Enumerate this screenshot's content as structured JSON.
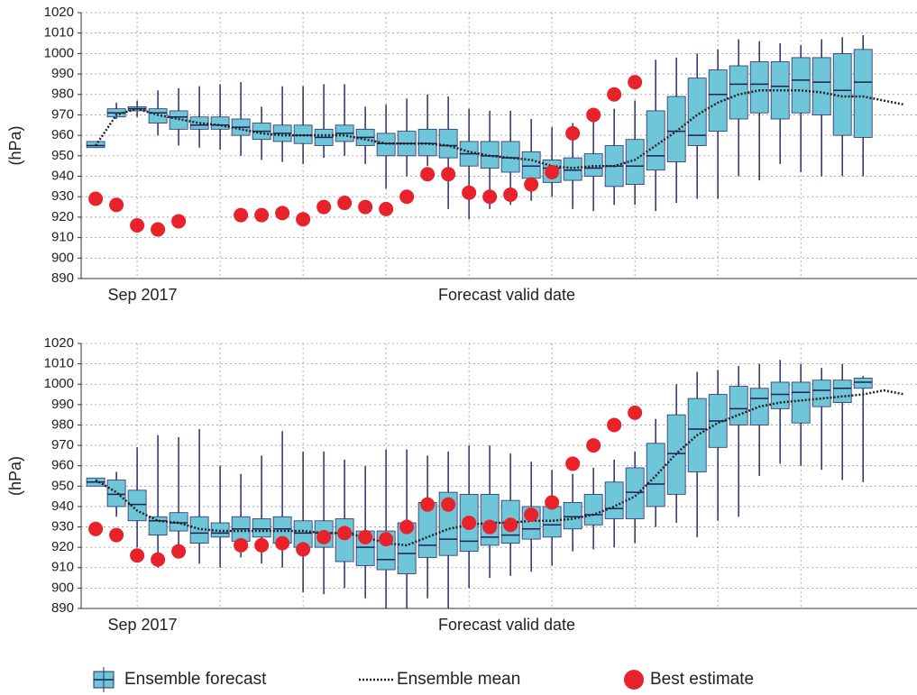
{
  "chart_data": [
    {
      "type": "box",
      "ylabel": "(hPa)",
      "date_label": "Sep 2017",
      "xlabel": "Forecast valid date",
      "xlim": [
        -0.7,
        39.6
      ],
      "xticks": [
        2,
        6,
        10,
        14,
        18,
        22,
        26,
        30,
        34
      ],
      "ylim": [
        890,
        1020
      ],
      "yticks": [
        890,
        900,
        910,
        920,
        930,
        940,
        950,
        960,
        970,
        980,
        990,
        1000,
        1010,
        1020
      ],
      "grid": true,
      "boxes": {
        "name": "Ensemble forecast",
        "color": "#6ec6d8",
        "x": [
          0,
          1,
          2,
          3,
          4,
          5,
          6,
          7,
          8,
          9,
          10,
          11,
          12,
          13,
          14,
          15,
          16,
          17,
          18,
          19,
          20,
          21,
          22,
          23,
          24,
          25,
          26,
          27,
          28,
          29,
          30,
          31,
          32,
          33,
          34,
          35,
          36,
          37
        ],
        "low": [
          954,
          968,
          969,
          960,
          955,
          954,
          953,
          950,
          948,
          947,
          946,
          949,
          950,
          946,
          934,
          940,
          945,
          924,
          919,
          924,
          926,
          928,
          930,
          924,
          923,
          926,
          926,
          923,
          927,
          929,
          929,
          940,
          938,
          946,
          942,
          940,
          940,
          940
        ],
        "q1": [
          954,
          969,
          972,
          966,
          963,
          963,
          963,
          960,
          958,
          957,
          956,
          955,
          957,
          955,
          950,
          950,
          950,
          949,
          945,
          944,
          942,
          939,
          937,
          938,
          940,
          935,
          936,
          943,
          947,
          955,
          962,
          968,
          971,
          968,
          971,
          970,
          960,
          959
        ],
        "median": [
          955,
          971,
          973,
          971,
          969,
          965,
          965,
          964,
          962,
          961,
          960,
          959,
          961,
          959,
          956,
          956,
          956,
          955,
          951,
          950,
          949,
          945,
          944,
          943,
          944,
          945,
          945,
          950,
          962,
          960,
          980,
          985,
          985,
          984,
          987,
          986,
          982,
          986
        ],
        "q3": [
          957,
          973,
          974,
          973,
          972,
          969,
          969,
          968,
          966,
          965,
          965,
          963,
          965,
          963,
          961,
          962,
          963,
          963,
          957,
          957,
          957,
          952,
          948,
          949,
          951,
          955,
          958,
          972,
          979,
          988,
          992,
          994,
          996,
          996,
          998,
          998,
          1000,
          1002
        ],
        "high": [
          957,
          976,
          977,
          982,
          983,
          984,
          985,
          986,
          974,
          984,
          984,
          985,
          985,
          974,
          975,
          978,
          980,
          979,
          973,
          972,
          972,
          968,
          964,
          966,
          968,
          973,
          977,
          997,
          998,
          1000,
          1002,
          1007,
          1006,
          1005,
          1004,
          1007,
          1008,
          1009
        ]
      },
      "mean": {
        "name": "Ensemble mean",
        "color": "#222222",
        "x": [
          0,
          1,
          2,
          3,
          4,
          5,
          6,
          7,
          8,
          9,
          10,
          11,
          12,
          13,
          14,
          15,
          16,
          17,
          18,
          19,
          20,
          21,
          22,
          23,
          24,
          25,
          26,
          27,
          28,
          29,
          30,
          31,
          32,
          33,
          34,
          35,
          36,
          37,
          38,
          39
        ],
        "values": [
          955,
          970,
          973,
          970,
          968,
          966,
          965,
          963,
          961,
          960,
          960,
          960,
          960,
          958,
          956,
          956,
          956,
          955,
          952,
          950,
          949,
          948,
          945,
          944,
          945,
          945,
          948,
          955,
          962,
          970,
          976,
          980,
          982,
          982,
          982,
          981,
          979,
          979,
          977,
          975
        ]
      },
      "best": {
        "name": "Best estimate",
        "color": "#e8222a",
        "x": [
          0,
          1,
          2,
          3,
          4,
          7,
          8,
          9,
          10,
          11,
          12,
          13,
          14,
          15,
          16,
          17,
          18,
          19,
          20,
          21,
          22,
          23,
          24,
          25,
          26
        ],
        "values": [
          929,
          926,
          916,
          914,
          918,
          921,
          921,
          922,
          919,
          925,
          927,
          925,
          924,
          930,
          941,
          941,
          932,
          930,
          931,
          936,
          942,
          961,
          970,
          980,
          986
        ]
      }
    },
    {
      "type": "box",
      "ylabel": "(hPa)",
      "date_label": "Sep 2017",
      "xlabel": "Forecast valid date",
      "xlim": [
        -0.7,
        39.6
      ],
      "xticks": [
        2,
        6,
        10,
        14,
        18,
        22,
        26,
        30,
        34
      ],
      "ylim": [
        890,
        1020
      ],
      "yticks": [
        890,
        900,
        910,
        920,
        930,
        940,
        950,
        960,
        970,
        980,
        990,
        1000,
        1010,
        1020
      ],
      "grid": true,
      "boxes": {
        "color": "#6ec6d8",
        "x": [
          0,
          1,
          2,
          3,
          4,
          5,
          6,
          7,
          8,
          9,
          10,
          11,
          12,
          13,
          14,
          15,
          16,
          17,
          18,
          19,
          20,
          21,
          22,
          23,
          24,
          25,
          26,
          27,
          28,
          29,
          30,
          31,
          32,
          33,
          34,
          35,
          36,
          37
        ],
        "low": [
          950,
          935,
          920,
          910,
          915,
          912,
          910,
          915,
          912,
          910,
          898,
          897,
          900,
          895,
          890,
          890,
          895,
          890,
          900,
          905,
          906,
          908,
          911,
          918,
          919,
          920,
          922,
          930,
          932,
          925,
          933,
          935,
          955,
          961,
          960,
          958,
          953,
          952
        ],
        "q1": [
          950,
          940,
          933,
          926,
          928,
          922,
          925,
          923,
          925,
          922,
          920,
          920,
          913,
          911,
          909,
          907,
          915,
          916,
          918,
          921,
          922,
          924,
          925,
          929,
          931,
          934,
          934,
          940,
          946,
          957,
          969,
          980,
          980,
          988,
          981,
          989,
          991,
          998
        ],
        "median": [
          952,
          946,
          941,
          933,
          932,
          927,
          927,
          929,
          929,
          929,
          927,
          927,
          927,
          920,
          914,
          917,
          921,
          924,
          923,
          925,
          926,
          929,
          931,
          935,
          936,
          939,
          947,
          951,
          966,
          978,
          982,
          988,
          993,
          995,
          996,
          997,
          998,
          1001
        ],
        "q3": [
          954,
          953,
          948,
          935,
          937,
          935,
          932,
          935,
          934,
          935,
          933,
          933,
          934,
          928,
          928,
          932,
          942,
          947,
          946,
          946,
          943,
          940,
          940,
          942,
          946,
          952,
          959,
          971,
          985,
          993,
          995,
          999,
          998,
          1001,
          1001,
          1002,
          1002,
          1003
        ],
        "high": [
          954,
          957,
          969,
          975,
          974,
          978,
          960,
          956,
          965,
          977,
          967,
          967,
          963,
          960,
          968,
          968,
          965,
          967,
          970,
          970,
          966,
          962,
          958,
          956,
          959,
          963,
          967,
          983,
          1000,
          1006,
          1007,
          1009,
          1010,
          1012,
          1010,
          1008,
          1010,
          1004
        ]
      },
      "mean": {
        "color": "#222222",
        "x": [
          0,
          1,
          2,
          3,
          4,
          5,
          6,
          7,
          8,
          9,
          10,
          11,
          12,
          13,
          14,
          15,
          16,
          17,
          18,
          19,
          20,
          21,
          22,
          23,
          24,
          25,
          26,
          27,
          28,
          29,
          30,
          31,
          32,
          33,
          34,
          35,
          36,
          37,
          38,
          39
        ],
        "values": [
          953,
          947,
          938,
          933,
          932,
          929,
          928,
          928,
          928,
          928,
          928,
          927,
          927,
          925,
          922,
          921,
          925,
          929,
          931,
          932,
          932,
          933,
          933,
          934,
          936,
          940,
          945,
          955,
          966,
          975,
          981,
          985,
          989,
          991,
          992,
          993,
          994,
          995,
          997,
          995
        ]
      },
      "best": {
        "color": "#e8222a",
        "x": [
          0,
          1,
          2,
          3,
          4,
          7,
          8,
          9,
          10,
          11,
          12,
          13,
          14,
          15,
          16,
          17,
          18,
          19,
          20,
          21,
          22,
          23,
          24,
          25,
          26
        ],
        "values": [
          929,
          926,
          916,
          914,
          918,
          921,
          921,
          922,
          919,
          925,
          927,
          925,
          924,
          930,
          941,
          941,
          932,
          930,
          931,
          936,
          942,
          961,
          970,
          980,
          986
        ]
      }
    }
  ]
}
